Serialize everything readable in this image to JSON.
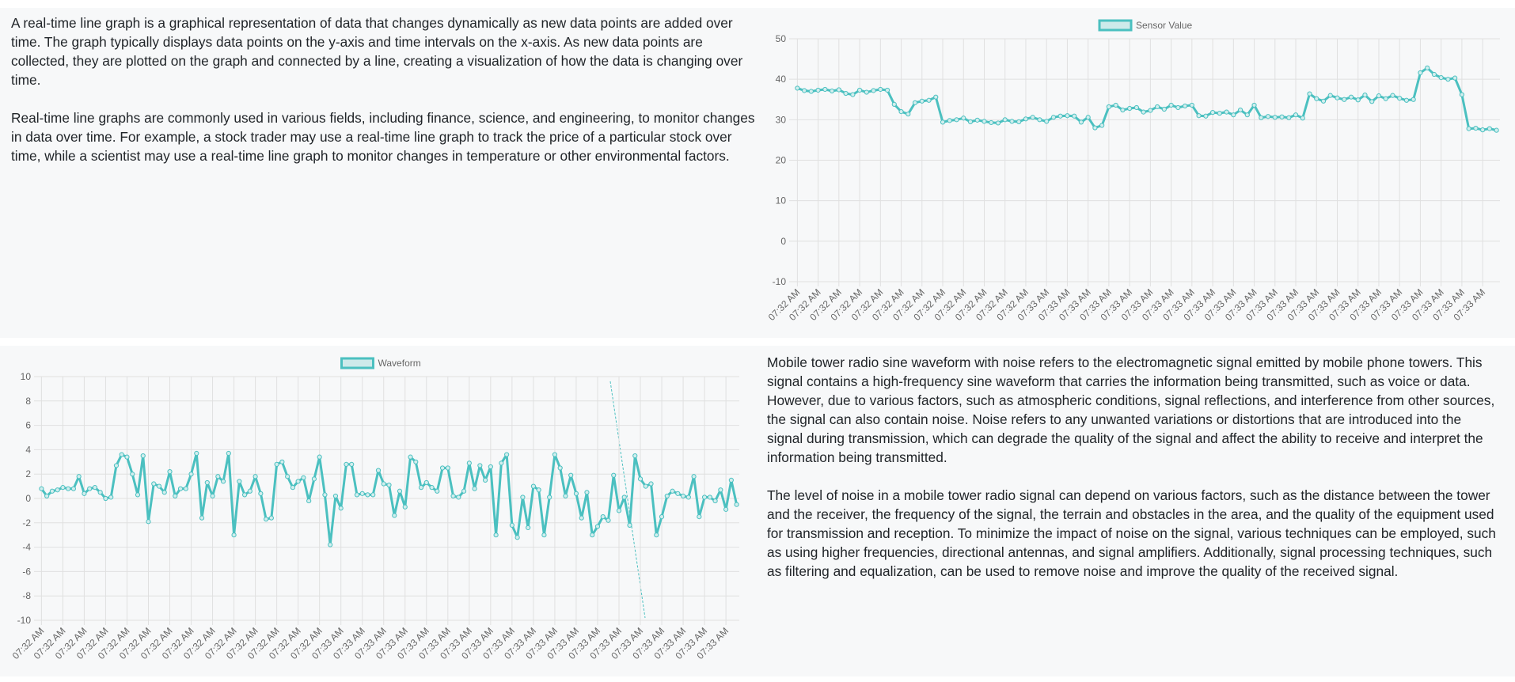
{
  "intro": {
    "paragraphs": [
      "A real-time line graph is a graphical representation of data that changes dynamically as new data points are added over time. The graph typically displays data points on the y-axis and time intervals on the x-axis. As new data points are collected, they are plotted on the graph and connected by a line, creating a visualization of how the data is changing over time.",
      "Real-time line graphs are commonly used in various fields, including finance, science, and engineering, to monitor changes in data over time. For example, a stock trader may use a real-time line graph to track the price of a particular stock over time, while a scientist may use a real-time line graph to monitor changes in temperature or other environmental factors."
    ]
  },
  "noise": {
    "paragraphs": [
      "Mobile tower radio sine waveform with noise refers to the electromagnetic signal emitted by mobile phone towers. This signal contains a high-frequency sine waveform that carries the information being transmitted, such as voice or data. However, due to various factors, such as atmospheric conditions, signal reflections, and interference from other sources, the signal can also contain noise. Noise refers to any unwanted variations or distortions that are introduced into the signal during transmission, which can degrade the quality of the signal and affect the ability to receive and interpret the information being transmitted.",
      "The level of noise in a mobile tower radio signal can depend on various factors, such as the distance between the tower and the receiver, the frequency of the signal, the terrain and obstacles in the area, and the quality of the equipment used for transmission and reception. To minimize the impact of noise on the signal, various techniques can be employed, such as using higher frequencies, directional antennas, and signal amplifiers. Additionally, signal processing techniques, such as filtering and equalization, can be used to remove noise and improve the quality of the received signal."
    ]
  },
  "chart_data": [
    {
      "type": "line",
      "legend": "top",
      "grid": true,
      "categories": [
        "07:32 AM",
        null,
        null,
        "07:32 AM",
        null,
        null,
        "07:32 AM",
        null,
        null,
        "07:32 AM",
        null,
        null,
        "07:32 AM",
        null,
        null,
        "07:32 AM",
        null,
        null,
        "07:32 AM",
        null,
        null,
        "07:32 AM",
        null,
        null,
        "07:32 AM",
        null,
        null,
        "07:32 AM",
        null,
        null,
        "07:32 AM",
        null,
        null,
        "07:32 AM",
        null,
        null,
        "07:33 AM",
        null,
        null,
        "07:33 AM",
        null,
        null,
        "07:33 AM",
        null,
        null,
        "07:33 AM",
        null,
        null,
        "07:33 AM",
        null,
        null,
        "07:33 AM",
        null,
        null,
        "07:33 AM",
        null,
        null,
        "07:33 AM",
        null,
        null,
        "07:33 AM",
        null,
        null,
        "07:33 AM",
        null,
        null,
        "07:33 AM",
        null,
        null,
        "07:33 AM",
        null,
        null,
        "07:33 AM",
        null,
        null,
        "07:33 AM",
        null,
        null,
        "07:33 AM",
        null,
        null,
        "07:33 AM",
        null,
        null,
        "07:33 AM",
        null,
        null,
        "07:33 AM",
        null,
        null,
        "07:33 AM",
        null,
        null,
        "07:33 AM",
        null,
        null,
        "07:33 AM",
        null,
        null,
        "07:33 AM",
        null,
        null
      ],
      "series": [
        {
          "name": "Sensor Value",
          "color": "#4bc0c0",
          "values": [
            37.8,
            37.2,
            37.0,
            37.3,
            37.5,
            37.1,
            37.4,
            36.5,
            36.2,
            37.3,
            36.8,
            37.2,
            37.5,
            37.3,
            33.8,
            32.0,
            31.4,
            34.2,
            34.6,
            34.8,
            35.6,
            29.4,
            29.8,
            30.0,
            30.4,
            29.5,
            29.9,
            29.6,
            29.3,
            29.2,
            30.0,
            29.6,
            29.5,
            30.2,
            30.6,
            30.0,
            29.6,
            30.6,
            30.9,
            31.0,
            30.9,
            29.4,
            30.6,
            28.0,
            28.6,
            33.2,
            33.6,
            32.4,
            32.8,
            33.0,
            31.9,
            32.3,
            33.2,
            32.6,
            33.6,
            33.0,
            33.4,
            33.6,
            31.0,
            30.9,
            31.8,
            31.6,
            31.9,
            31.2,
            32.4,
            31.2,
            33.6,
            30.5,
            30.8,
            30.6,
            30.7,
            30.5,
            31.2,
            30.4,
            36.4,
            35.2,
            34.6,
            36.0,
            35.4,
            35.0,
            35.6,
            34.9,
            36.1,
            34.5,
            35.9,
            35.2,
            36.0,
            35.3,
            34.8,
            35.0,
            41.6,
            42.8,
            41.2,
            40.4,
            40.0,
            40.3,
            36.2,
            27.8,
            27.9,
            27.5,
            27.8,
            27.4
          ]
        }
      ],
      "ylim": [
        -10,
        50
      ],
      "yticks": [
        -10,
        0,
        10,
        20,
        30,
        40,
        50
      ]
    },
    {
      "type": "line",
      "legend": "top",
      "grid": true,
      "categories": [
        "07:32 AM",
        null,
        null,
        null,
        "07:32 AM",
        null,
        null,
        null,
        "07:32 AM",
        null,
        null,
        null,
        "07:32 AM",
        null,
        null,
        null,
        "07:32 AM",
        null,
        null,
        null,
        "07:32 AM",
        null,
        null,
        null,
        "07:32 AM",
        null,
        null,
        null,
        "07:32 AM",
        null,
        null,
        null,
        "07:32 AM",
        null,
        null,
        null,
        "07:32 AM",
        null,
        null,
        null,
        "07:32 AM",
        null,
        null,
        null,
        "07:32 AM",
        null,
        null,
        null,
        "07:32 AM",
        null,
        null,
        null,
        "07:32 AM",
        null,
        null,
        null,
        "07:33 AM",
        null,
        null,
        null,
        "07:33 AM",
        null,
        null,
        null,
        "07:33 AM",
        null,
        null,
        null,
        "07:33 AM",
        null,
        null,
        null,
        "07:33 AM",
        null,
        null,
        null,
        "07:33 AM",
        null,
        null,
        null,
        "07:33 AM",
        null,
        null,
        null,
        "07:33 AM",
        null,
        null,
        null,
        "07:33 AM",
        null,
        null,
        null,
        "07:33 AM",
        null,
        null,
        null,
        "07:33 AM",
        null,
        null,
        null,
        "07:33 AM",
        null,
        null,
        null,
        "07:33 AM",
        null,
        null,
        null,
        "07:33 AM",
        null,
        null,
        null,
        "07:33 AM",
        null,
        null,
        null,
        "07:33 AM",
        null,
        null,
        null,
        "07:33 AM",
        null,
        null,
        null,
        "07:33 AM",
        null,
        null,
        null,
        "07:33 AM",
        null,
        null
      ],
      "series": [
        {
          "name": "Waveform",
          "color": "#4bc0c0",
          "values": [
            0.8,
            0.2,
            0.6,
            0.7,
            0.9,
            0.8,
            0.8,
            1.8,
            0.4,
            0.8,
            0.9,
            0.5,
            0.0,
            0.1,
            2.7,
            3.6,
            3.4,
            2.0,
            0.3,
            3.5,
            -1.9,
            1.2,
            1.0,
            0.5,
            2.2,
            0.2,
            0.8,
            0.8,
            2.0,
            3.7,
            -1.6,
            1.3,
            0.2,
            1.8,
            1.4,
            3.7,
            -3.0,
            1.4,
            0.3,
            0.6,
            1.8,
            0.4,
            -1.7,
            -1.6,
            2.8,
            3.0,
            1.8,
            0.9,
            1.4,
            1.7,
            -0.2,
            1.6,
            3.4,
            0.3,
            -3.8,
            0.2,
            -0.8,
            2.8,
            2.8,
            0.3,
            0.4,
            0.3,
            0.3,
            2.3,
            1.2,
            1.1,
            -1.4,
            0.6,
            -0.7,
            3.4,
            3.0,
            0.9,
            1.3,
            0.9,
            0.6,
            2.5,
            2.5,
            0.2,
            0.1,
            0.6,
            2.9,
            0.8,
            2.7,
            1.5,
            2.6,
            -3.0,
            2.9,
            3.6,
            -2.2,
            -3.2,
            0.1,
            -2.4,
            1.0,
            0.7,
            -3.0,
            0.1,
            3.6,
            2.5,
            0.2,
            1.9,
            0.4,
            -1.6,
            0.5,
            -3.0,
            -2.3,
            -1.5,
            -1.8,
            1.9,
            -1.0,
            0.1,
            -2.2,
            3.5,
            1.6,
            1.0,
            1.2,
            -3.0,
            -1.5,
            0.2,
            0.6,
            0.4,
            0.2,
            0.1,
            1.8,
            -1.5,
            0.1,
            0.1,
            -0.2,
            0.7,
            -0.9,
            1.5,
            -0.5
          ]
        }
      ],
      "ylim": [
        -10,
        10
      ],
      "yticks": [
        -10,
        -8,
        -6,
        -4,
        -2,
        0,
        2,
        4,
        6,
        8,
        10
      ]
    }
  ]
}
